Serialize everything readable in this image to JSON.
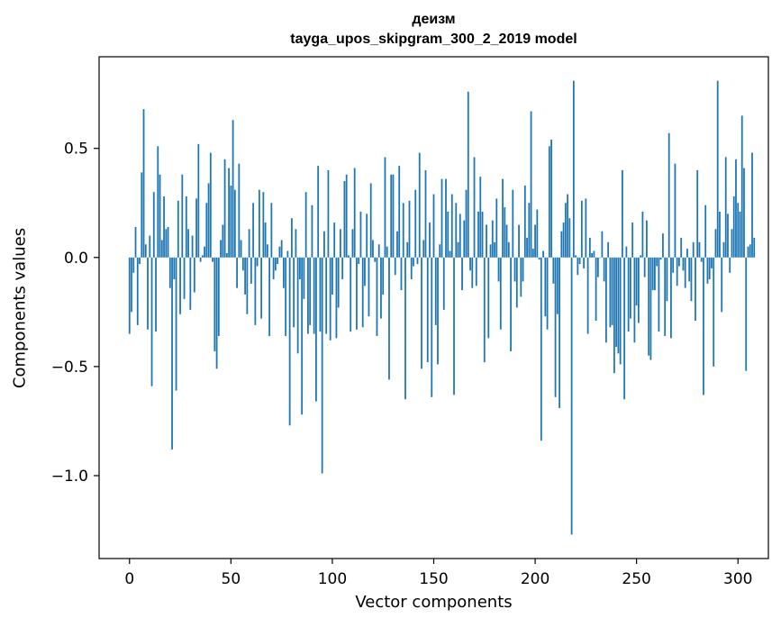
{
  "chart_data": {
    "type": "bar",
    "title": "деизм",
    "subtitle": "tayga_upos_skipgram_300_2_2019 model",
    "xlabel": "Vector components",
    "ylabel": "Components values",
    "xlim": [
      -15,
      315
    ],
    "ylim": [
      -1.38,
      0.92
    ],
    "xticks": [
      0,
      50,
      100,
      150,
      200,
      250,
      300
    ],
    "yticks": [
      -1.0,
      -0.5,
      0.0,
      0.5
    ],
    "ytick_labels": [
      "−1.0",
      "−0.5",
      "0.0",
      "0.5"
    ],
    "grid": false,
    "bar_color": "#1f77b4",
    "values": [
      -0.35,
      -0.25,
      -0.07,
      0.14,
      -0.31,
      -0.03,
      0.39,
      0.68,
      0.06,
      -0.33,
      0.1,
      -0.59,
      0.3,
      -0.34,
      0.51,
      0.38,
      0.08,
      0.28,
      0.13,
      0.14,
      -0.14,
      -0.88,
      -0.1,
      -0.61,
      0.26,
      -0.26,
      0.38,
      -0.19,
      0.28,
      0.13,
      -0.24,
      0.1,
      -0.16,
      0.27,
      0.52,
      -0.02,
      0.01,
      0.05,
      0.25,
      0.34,
      0.48,
      -0.02,
      -0.43,
      -0.51,
      -0.36,
      0.08,
      0.15,
      0.45,
      0.02,
      0.41,
      0.33,
      0.63,
      0.31,
      -0.14,
      0.43,
      0.08,
      -0.06,
      -0.17,
      -0.26,
      0.13,
      -0.12,
      0.25,
      -0.31,
      -0.04,
      0.31,
      -0.28,
      0.3,
      0.16,
      0.06,
      -0.36,
      0.25,
      -0.1,
      -0.06,
      -0.03,
      0.05,
      0.08,
      -0.14,
      -0.36,
      0.03,
      -0.77,
      0.18,
      -0.32,
      0.13,
      -0.44,
      -0.1,
      -0.72,
      -0.19,
      0.3,
      -0.35,
      -0.31,
      0.24,
      -0.35,
      -0.66,
      0.42,
      -0.34,
      -0.99,
      0.12,
      -0.35,
      0.4,
      -0.38,
      -0.17,
      0.16,
      -0.37,
      -0.23,
      0.13,
      -0.1,
      0.35,
      0.38,
      0.01,
      -0.34,
      0.13,
      0.41,
      -0.33,
      -0.03,
      0.21,
      -0.32,
      -0.13,
      0.2,
      -0.27,
      0.34,
      0.08,
      -0.02,
      -0.36,
      0.06,
      -0.28,
      -0.17,
      0.46,
      0.05,
      -0.56,
      0.38,
      0.38,
      -0.08,
      0.12,
      0.42,
      -0.15,
      0.25,
      -0.65,
      0.07,
      0.26,
      -0.1,
      -0.04,
      0.31,
      -0.03,
      0.48,
      -0.51,
      0.08,
      0.4,
      -0.48,
      0.16,
      -0.64,
      0.29,
      -0.31,
      -0.49,
      0.06,
      0.36,
      -0.24,
      0.36,
      0.21,
      0.03,
      0.29,
      -0.63,
      0.25,
      0.07,
      0.2,
      -0.15,
      0.17,
      0.31,
      0.76,
      -0.06,
      -0.14,
      0.46,
      -0.13,
      0.21,
      0.37,
      0.21,
      -0.48,
      0.15,
      -0.37,
      0.06,
      0.17,
      0.07,
      0.27,
      -0.11,
      -0.33,
      0.36,
      0.23,
      0.15,
      0.07,
      -0.43,
      0.31,
      -0.11,
      -0.23,
      0.15,
      -0.18,
      -0.11,
      0.33,
      0.09,
      0.25,
      0.67,
      0.04,
      0.15,
      0.22,
      -0.01,
      -0.84,
      0.03,
      -0.27,
      -0.33,
      0.51,
      0.54,
      -0.12,
      -0.64,
      -0.26,
      -0.69,
      0.12,
      0.16,
      0.25,
      0.29,
      0.18,
      -1.27,
      0.81,
      0.01,
      -0.08,
      -0.03,
      0.26,
      -0.05,
      0.27,
      -0.35,
      0.09,
      0.02,
      0.03,
      -0.29,
      -0.09,
      0.0,
      0.12,
      -0.11,
      -0.39,
      0.07,
      -0.32,
      -0.31,
      -0.53,
      -0.41,
      -0.44,
      -0.49,
      0.4,
      -0.65,
      0.05,
      -0.34,
      -0.28,
      0.16,
      -0.39,
      -0.22,
      -0.3,
      0.01,
      0.21,
      -0.09,
      0.17,
      -0.45,
      -0.47,
      -0.15,
      -0.15,
      -0.04,
      -0.34,
      -0.01,
      0.11,
      -0.36,
      -0.2,
      0.57,
      -0.37,
      -0.07,
      0.43,
      -0.13,
      -0.04,
      0.09,
      -0.06,
      -0.14,
      0.04,
      -0.11,
      -0.2,
      0.07,
      -0.29,
      0.4,
      0.07,
      -0.02,
      -0.63,
      0.24,
      -0.12,
      -0.1,
      -0.05,
      -0.5,
      0.13,
      0.81,
      0.21,
      -0.25,
      0.07,
      0.46,
      0.2,
      -0.07,
      0.13,
      0.28,
      0.45,
      0.25,
      0.21,
      0.65,
      0.41,
      -0.52,
      0.05,
      0.06,
      0.48,
      0.09
    ]
  }
}
